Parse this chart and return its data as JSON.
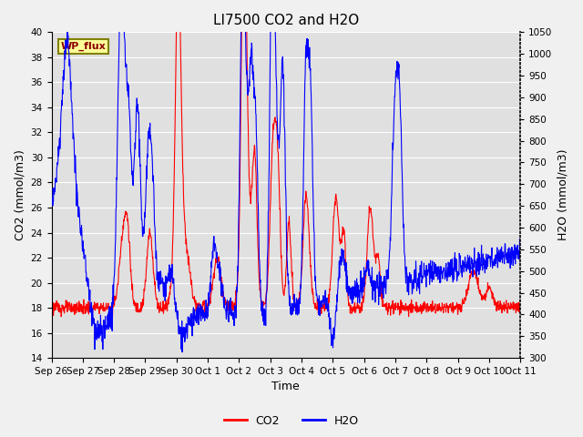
{
  "title": "LI7500 CO2 and H2O",
  "xlabel": "Time",
  "ylabel_left": "CO2 (mmol/m3)",
  "ylabel_right": "H2O (mmol/m3)",
  "site_label": "WP_flux",
  "co2_ylim": [
    14,
    40
  ],
  "h2o_ylim": [
    300,
    1050
  ],
  "co2_yticks": [
    14,
    16,
    18,
    20,
    22,
    24,
    26,
    28,
    30,
    32,
    34,
    36,
    38,
    40
  ],
  "h2o_yticks": [
    300,
    350,
    400,
    450,
    500,
    550,
    600,
    650,
    700,
    750,
    800,
    850,
    900,
    950,
    1000,
    1050
  ],
  "xtick_labels": [
    "Sep 26",
    "Sep 27",
    "Sep 28",
    "Sep 29",
    "Sep 30",
    "Oct 1",
    "Oct 2",
    "Oct 3",
    "Oct 4",
    "Oct 5",
    "Oct 6",
    "Oct 7",
    "Oct 8",
    "Oct 9",
    "Oct 10",
    "Oct 11"
  ],
  "co2_color": "#FF0000",
  "h2o_color": "#0000FF",
  "fig_facecolor": "#F0F0F0",
  "plot_bg_color": "#E0E0E0",
  "grid_color": "#FFFFFF",
  "site_label_facecolor": "#FFFF99",
  "site_label_edgecolor": "#808000",
  "legend_co2_label": "CO2",
  "legend_h2o_label": "H2O",
  "linewidth": 0.8,
  "title_fontsize": 11,
  "label_fontsize": 9,
  "tick_fontsize": 7.5
}
